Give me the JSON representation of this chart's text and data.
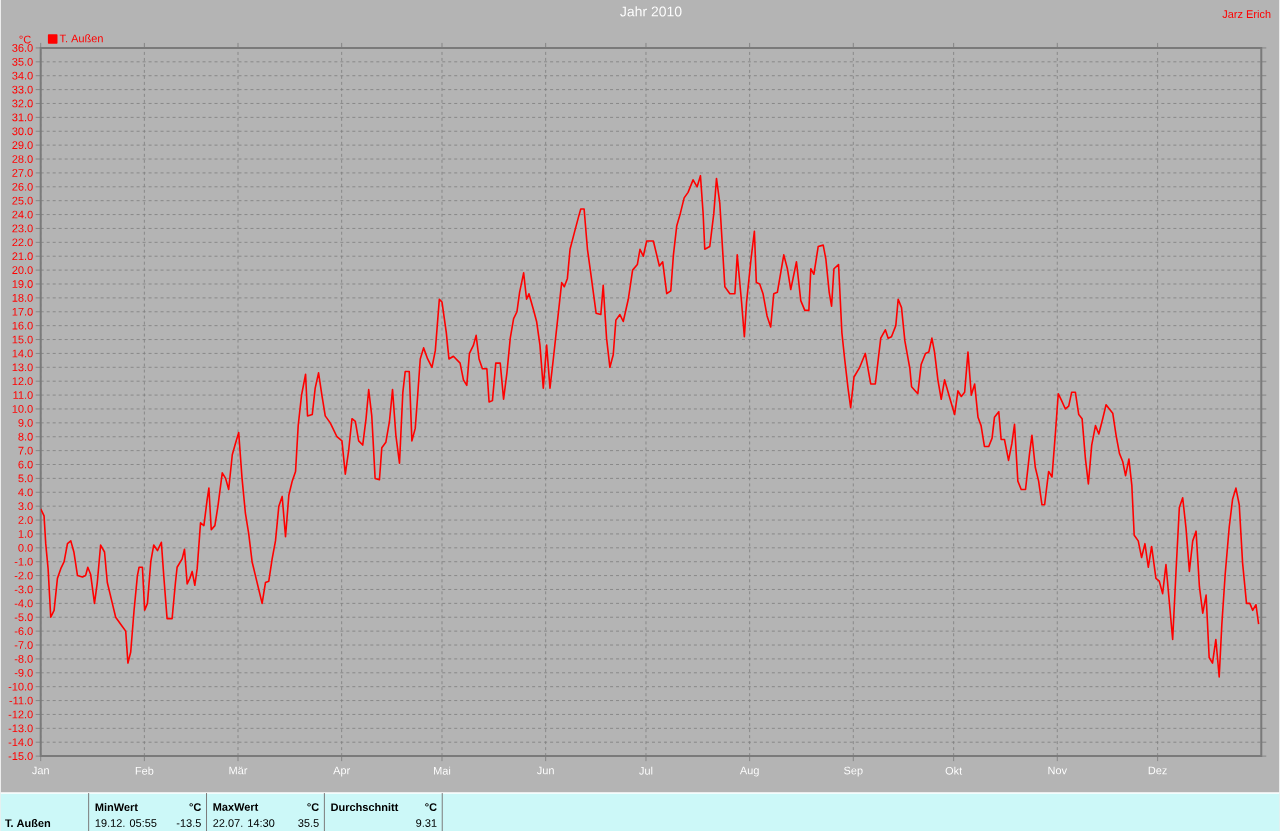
{
  "chart_data": {
    "type": "line",
    "title": "Jahr 2010",
    "ylabel": "°C",
    "legend": "top left",
    "grid": true,
    "marker": "none",
    "line_style": "solid",
    "xlim": [
      "2010-01-01",
      "2011-01-01"
    ],
    "ylim": [
      -15,
      36
    ],
    "xticks": [
      {
        "value": "2010-01-01",
        "label": "Jan"
      },
      {
        "value": "2010-02-01",
        "label": "Feb"
      },
      {
        "value": "2010-03-01",
        "label": "Mär"
      },
      {
        "value": "2010-04-01",
        "label": "Apr"
      },
      {
        "value": "2010-05-01",
        "label": "Mai"
      },
      {
        "value": "2010-06-01",
        "label": "Jun"
      },
      {
        "value": "2010-07-01",
        "label": "Jul"
      },
      {
        "value": "2010-08-01",
        "label": "Aug"
      },
      {
        "value": "2010-09-01",
        "label": "Sep"
      },
      {
        "value": "2010-10-01",
        "label": "Okt"
      },
      {
        "value": "2010-11-01",
        "label": "Nov"
      },
      {
        "value": "2010-12-01",
        "label": "Dez"
      }
    ],
    "yticks": [
      {
        "value": -15,
        "label": "-15.0"
      },
      {
        "value": -14,
        "label": "-14.0"
      },
      {
        "value": -13,
        "label": "-13.0"
      },
      {
        "value": -12,
        "label": "-12.0"
      },
      {
        "value": -11,
        "label": "-11.0"
      },
      {
        "value": -10,
        "label": "-10.0"
      },
      {
        "value": -9,
        "label": "-9.0"
      },
      {
        "value": -8,
        "label": "-8.0"
      },
      {
        "value": -7,
        "label": "-7.0"
      },
      {
        "value": -6,
        "label": "-6.0"
      },
      {
        "value": -5,
        "label": "-5.0"
      },
      {
        "value": -4,
        "label": "-4.0"
      },
      {
        "value": -3,
        "label": "-3.0"
      },
      {
        "value": -2,
        "label": "-2.0"
      },
      {
        "value": -1,
        "label": "-1.0"
      },
      {
        "value": 0,
        "label": "0.0"
      },
      {
        "value": 1,
        "label": "1.0"
      },
      {
        "value": 2,
        "label": "2.0"
      },
      {
        "value": 3,
        "label": "3.0"
      },
      {
        "value": 4,
        "label": "4.0"
      },
      {
        "value": 5,
        "label": "5.0"
      },
      {
        "value": 6,
        "label": "6.0"
      },
      {
        "value": 7,
        "label": "7.0"
      },
      {
        "value": 8,
        "label": "8.0"
      },
      {
        "value": 9,
        "label": "9.0"
      },
      {
        "value": 10,
        "label": "10.0"
      },
      {
        "value": 11,
        "label": "11.0"
      },
      {
        "value": 12,
        "label": "12.0"
      },
      {
        "value": 13,
        "label": "13.0"
      },
      {
        "value": 14,
        "label": "14.0"
      },
      {
        "value": 15,
        "label": "15.0"
      },
      {
        "value": 16,
        "label": "16.0"
      },
      {
        "value": 17,
        "label": "17.0"
      },
      {
        "value": 18,
        "label": "18.0"
      },
      {
        "value": 19,
        "label": "19.0"
      },
      {
        "value": 20,
        "label": "20.0"
      },
      {
        "value": 21,
        "label": "21.0"
      },
      {
        "value": 22,
        "label": "22.0"
      },
      {
        "value": 23,
        "label": "23.0"
      },
      {
        "value": 24,
        "label": "24.0"
      },
      {
        "value": 25,
        "label": "25.0"
      },
      {
        "value": 26,
        "label": "26.0"
      },
      {
        "value": 27,
        "label": "27.0"
      },
      {
        "value": 28,
        "label": "28.0"
      },
      {
        "value": 29,
        "label": "29.0"
      },
      {
        "value": 30,
        "label": "30.0"
      },
      {
        "value": 31,
        "label": "31.0"
      },
      {
        "value": 32,
        "label": "32.0"
      },
      {
        "value": 33,
        "label": "33.0"
      },
      {
        "value": 34,
        "label": "34.0"
      },
      {
        "value": 35,
        "label": "35.0"
      },
      {
        "value": 36,
        "label": "36.0"
      }
    ],
    "series": [
      {
        "name": "T. Außen",
        "color": "#ff0000",
        "x": [
          "2010-01-01T00:00",
          "2010-01-02T00:00",
          "2010-01-02T12:00",
          "2010-01-03T05:00",
          "2010-01-04T00:00",
          "2010-01-05T00:00",
          "2010-01-06T00:00",
          "2010-01-07T00:00",
          "2010-01-08T00:00",
          "2010-01-09T00:00",
          "2010-01-10T00:00",
          "2010-01-10T22:00",
          "2010-01-12T00:00",
          "2010-01-13T12:00",
          "2010-01-14T10:00",
          "2010-01-15T02:00",
          "2010-01-15T22:00",
          "2010-01-17T02:00",
          "2010-01-17T22:00",
          "2010-01-18T22:00",
          "2010-01-20T02:00",
          "2010-01-20T22:00",
          "2010-01-22T10:00",
          "2010-01-23T10:00",
          "2010-01-24T22:00",
          "2010-01-26T10:00",
          "2010-01-27T02:00",
          "2010-01-27T22:00",
          "2010-01-28T22:00",
          "2010-01-29T22:00",
          "2010-01-30T10:00",
          "2010-01-31T10:00",
          "2010-02-01T02:00",
          "2010-02-01T22:00",
          "2010-02-02T22:00",
          "2010-02-03T19:00",
          "2010-02-04T22:00",
          "2010-02-06T02:00",
          "2010-02-06T19:00",
          "2010-02-07T19:00",
          "2010-02-09T07:00",
          "2010-02-10T07:00",
          "2010-02-10T19:00",
          "2010-02-12T07:00",
          "2010-02-13T00:00",
          "2010-02-13T19:00",
          "2010-02-14T14:00",
          "2010-02-15T07:00",
          "2010-02-16T02:00",
          "2010-02-16T19:00",
          "2010-02-17T19:00",
          "2010-02-18T19:00",
          "2010-02-19T19:00",
          "2010-02-20T07:00",
          "2010-02-21T00:00",
          "2010-02-22T02:00",
          "2010-02-23T00:00",
          "2010-02-24T07:00",
          "2010-02-25T07:00",
          "2010-02-26T05:00",
          "2010-02-27T07:00",
          "2010-02-28T05:00",
          "2010-03-01T05:00",
          "2010-03-02T05:00",
          "2010-03-03T05:00",
          "2010-03-04T05:00",
          "2010-03-05T05:00",
          "2010-03-06T05:00",
          "2010-03-07T05:00",
          "2010-03-08T05:00",
          "2010-03-09T05:00",
          "2010-03-10T05:00",
          "2010-03-11T05:00",
          "2010-03-12T05:00",
          "2010-03-13T05:00",
          "2010-03-14T05:00",
          "2010-03-15T05:00",
          "2010-03-16T05:00",
          "2010-03-17T05:00",
          "2010-03-18T05:00",
          "2010-03-19T00:00",
          "2010-03-20T00:00",
          "2010-03-21T05:00",
          "2010-03-21T19:00",
          "2010-03-23T05:00",
          "2010-03-24T02:00",
          "2010-03-25T02:00",
          "2010-03-26T02:00",
          "2010-03-27T02:00",
          "2010-03-28T14:00",
          "2010-03-30T14:00",
          "2010-04-01T02:00",
          "2010-04-02T02:00",
          "2010-04-03T02:00",
          "2010-04-04T02:00",
          "2010-04-05T02:00",
          "2010-04-06T02:00",
          "2010-04-07T07:00",
          "2010-04-08T07:00",
          "2010-04-09T02:00",
          "2010-04-10T00:00",
          "2010-04-11T00:00",
          "2010-04-12T07:00",
          "2010-04-13T00:00",
          "2010-04-14T05:00",
          "2010-04-15T07:00",
          "2010-04-16T05:00",
          "2010-04-17T05:00",
          "2010-04-18T07:00",
          "2010-04-19T07:00",
          "2010-04-20T00:00",
          "2010-04-21T05:00",
          "2010-04-22T00:00",
          "2010-04-23T00:00",
          "2010-04-23T17:00",
          "2010-04-24T12:00",
          "2010-04-25T12:00",
          "2010-04-26T17:00",
          "2010-04-28T00:00",
          "2010-04-29T00:00",
          "2010-04-30T05:00",
          "2010-05-01T00:00",
          "2010-05-02T07:00",
          "2010-05-03T02:00",
          "2010-05-04T10:00",
          "2010-05-06T10:00",
          "2010-05-07T10:00",
          "2010-05-08T10:00",
          "2010-05-09T05:00",
          "2010-05-10T10:00",
          "2010-05-11T05:00",
          "2010-05-12T02:00",
          "2010-05-13T02:00",
          "2010-05-14T10:00",
          "2010-05-15T02:00",
          "2010-05-16T02:00",
          "2010-05-17T02:00",
          "2010-05-18T10:00",
          "2010-05-19T10:00",
          "2010-05-20T10:00",
          "2010-05-21T10:00",
          "2010-05-22T10:00",
          "2010-05-23T10:00",
          "2010-05-24T05:00",
          "2010-05-25T10:00",
          "2010-05-26T07:00",
          "2010-05-27T00:00",
          "2010-05-28T07:00",
          "2010-05-29T07:00",
          "2010-05-30T07:00",
          "2010-05-31T07:00",
          "2010-06-01T07:00",
          "2010-06-02T07:00",
          "2010-06-03T07:00",
          "2010-06-04T07:00",
          "2010-06-05T19:00",
          "2010-06-06T14:00",
          "2010-06-07T12:00",
          "2010-06-08T07:00",
          "2010-06-09T14:00",
          "2010-06-10T19:00",
          "2010-06-11T12:00",
          "2010-06-12T12:00",
          "2010-06-13T12:00",
          "2010-06-14T14:00",
          "2010-06-16T02:00",
          "2010-06-17T12:00",
          "2010-06-18T05:00",
          "2010-06-19T05:00",
          "2010-06-20T05:00",
          "2010-06-21T05:00",
          "2010-06-22T00:00",
          "2010-06-23T05:00",
          "2010-06-24T05:00",
          "2010-06-25T17:00",
          "2010-06-27T00:00",
          "2010-06-28T10:00",
          "2010-06-29T05:00",
          "2010-06-30T05:00",
          "2010-07-01T05:00",
          "2010-07-03T05:00",
          "2010-07-05T00:00",
          "2010-07-06T00:00",
          "2010-07-07T05:00",
          "2010-07-08T10:00",
          "2010-07-09T05:00",
          "2010-07-10T05:00",
          "2010-07-11T07:00",
          "2010-07-12T10:00",
          "2010-07-13T14:00",
          "2010-07-15T02:00",
          "2010-07-16T07:00",
          "2010-07-17T07:00",
          "2010-07-18T02:00",
          "2010-07-18T14:00",
          "2010-07-20T02:00",
          "2010-07-21T07:00",
          "2010-07-22T02:00",
          "2010-07-23T02:00",
          "2010-07-24T02:00",
          "2010-07-24T14:00",
          "2010-07-26T02:00",
          "2010-07-27T14:00",
          "2010-07-28T07:00",
          "2010-07-29T14:00",
          "2010-07-30T10:00",
          "2010-07-31T02:00",
          "2010-08-01T10:00",
          "2010-08-02T10:00",
          "2010-08-03T00:00",
          "2010-08-04T00:00",
          "2010-08-05T00:00",
          "2010-08-06T05:00",
          "2010-08-07T07:00",
          "2010-08-08T05:00",
          "2010-08-09T07:00",
          "2010-08-11T05:00",
          "2010-08-12T07:00",
          "2010-08-13T07:00",
          "2010-08-15T00:00",
          "2010-08-16T07:00",
          "2010-08-17T12:00",
          "2010-08-18T17:00",
          "2010-08-19T07:00",
          "2010-08-20T05:00",
          "2010-08-21T12:00",
          "2010-08-23T00:00",
          "2010-08-23T19:00",
          "2010-08-24T19:00",
          "2010-08-25T12:00",
          "2010-08-26T05:00",
          "2010-08-27T14:00",
          "2010-08-28T14:00",
          "2010-08-29T10:00",
          "2010-08-30T10:00",
          "2010-08-31T05:00",
          "2010-09-01T05:00",
          "2010-09-02T22:00",
          "2010-09-04T14:00",
          "2010-09-06T05:00",
          "2010-09-07T14:00",
          "2010-09-09T05:00",
          "2010-09-10T14:00",
          "2010-09-11T10:00",
          "2010-09-12T10:00",
          "2010-09-13T17:00",
          "2010-09-14T10:00",
          "2010-09-15T10:00",
          "2010-09-16T10:00",
          "2010-09-17T22:00",
          "2010-09-18T10:00",
          "2010-09-20T07:00",
          "2010-09-21T07:00",
          "2010-09-22T14:00",
          "2010-09-23T14:00",
          "2010-09-24T12:00",
          "2010-09-25T07:00",
          "2010-09-26T07:00",
          "2010-09-27T07:00",
          "2010-09-28T07:00",
          "2010-09-29T14:00",
          "2010-10-01T07:00",
          "2010-10-02T07:00",
          "2010-10-03T07:00",
          "2010-10-04T07:00",
          "2010-10-05T07:00",
          "2010-10-06T07:00",
          "2010-10-07T07:00",
          "2010-10-08T07:00",
          "2010-10-09T05:00",
          "2010-10-10T05:00",
          "2010-10-11T12:00",
          "2010-10-12T12:00",
          "2010-10-13T05:00",
          "2010-10-14T12:00",
          "2010-10-15T05:00",
          "2010-10-16T05:00",
          "2010-10-17T10:00",
          "2010-10-18T10:00",
          "2010-10-19T05:00",
          "2010-10-20T05:00",
          "2010-10-21T05:00",
          "2010-10-22T12:00",
          "2010-10-23T17:00",
          "2010-10-24T10:00",
          "2010-10-25T10:00",
          "2010-10-26T10:00",
          "2010-10-27T10:00",
          "2010-10-28T05:00",
          "2010-10-29T10:00",
          "2010-10-30T10:00",
          "2010-10-31T10:00",
          "2010-11-01T07:00",
          "2010-11-02T07:00",
          "2010-11-03T10:00",
          "2010-11-04T10:00",
          "2010-11-05T07:00",
          "2010-11-06T10:00",
          "2010-11-07T10:00",
          "2010-11-08T10:00",
          "2010-11-09T10:00",
          "2010-11-10T07:00",
          "2010-11-11T07:00",
          "2010-11-12T10:00",
          "2010-11-13T10:00",
          "2010-11-14T14:00",
          "2010-11-15T14:00",
          "2010-11-16T14:00",
          "2010-11-17T14:00",
          "2010-11-18T14:00",
          "2010-11-19T14:00",
          "2010-11-20T14:00",
          "2010-11-21T10:00",
          "2010-11-22T10:00",
          "2010-11-23T07:00",
          "2010-11-24T00:00",
          "2010-11-25T05:00",
          "2010-11-26T05:00",
          "2010-11-27T05:00",
          "2010-11-28T05:00",
          "2010-11-29T05:00",
          "2010-11-30T12:00",
          "2010-12-01T12:00",
          "2010-12-02T12:00",
          "2010-12-03T12:00",
          "2010-12-04T12:00",
          "2010-12-05T12:00",
          "2010-12-06T12:00",
          "2010-12-07T12:00",
          "2010-12-08T12:00",
          "2010-12-09T12:00",
          "2010-12-10T12:00",
          "2010-12-11T12:00",
          "2010-12-12T12:00",
          "2010-12-13T12:00",
          "2010-12-14T12:00",
          "2010-12-15T12:00",
          "2010-12-16T10:00",
          "2010-12-17T10:00",
          "2010-12-18T10:00",
          "2010-12-19T10:00",
          "2010-12-20T05:00",
          "2010-12-21T05:00",
          "2010-12-22T10:00",
          "2010-12-23T10:00",
          "2010-12-24T10:00",
          "2010-12-25T10:00",
          "2010-12-26T10:00",
          "2010-12-27T14:00",
          "2010-12-28T14:00",
          "2010-12-29T10:00",
          "2010-12-30T10:00",
          "2010-12-31T05:00"
        ],
        "values": [
          2.8,
          2.3,
          0.3,
          -1.5,
          -5.0,
          -4.5,
          -2.2,
          -1.5,
          -1.0,
          0.3,
          0.5,
          -0.3,
          -2.0,
          -2.1,
          -2.0,
          -1.4,
          -1.9,
          -4.0,
          -2.5,
          0.2,
          -0.3,
          -2.5,
          -4.0,
          -5.0,
          -5.5,
          -6.0,
          -8.3,
          -7.5,
          -4.5,
          -2.0,
          -1.4,
          -1.4,
          -4.5,
          -4.0,
          -1.0,
          0.2,
          -0.2,
          0.4,
          -2.0,
          -5.1,
          -5.1,
          -2.5,
          -1.4,
          -0.8,
          -0.1,
          -2.6,
          -2.2,
          -1.7,
          -2.7,
          -1.5,
          1.8,
          1.6,
          3.5,
          4.3,
          1.3,
          1.6,
          3.0,
          5.4,
          5.0,
          4.2,
          6.7,
          7.5,
          8.3,
          5.0,
          2.5,
          1.0,
          -1.0,
          -2.0,
          -3.0,
          -4.0,
          -2.5,
          -2.4,
          -0.8,
          0.5,
          3.0,
          3.7,
          0.8,
          3.8,
          4.8,
          5.5,
          8.8,
          11.0,
          12.5,
          9.5,
          9.6,
          11.5,
          12.6,
          11.0,
          9.5,
          9.0,
          8.0,
          7.7,
          5.3,
          7.0,
          9.3,
          9.1,
          7.7,
          7.4,
          9.3,
          11.4,
          9.5,
          5.0,
          4.9,
          7.2,
          7.6,
          9.1,
          11.4,
          8.1,
          6.1,
          11.2,
          12.7,
          12.7,
          7.7,
          8.6,
          10.9,
          13.6,
          14.4,
          13.6,
          13.0,
          14.2,
          17.9,
          17.7,
          15.5,
          13.6,
          13.8,
          13.3,
          12.1,
          11.7,
          14.0,
          14.6,
          15.3,
          13.6,
          12.9,
          12.9,
          10.5,
          10.6,
          13.3,
          13.3,
          10.7,
          12.6,
          15.1,
          16.5,
          17.0,
          18.4,
          19.8,
          17.9,
          18.3,
          17.2,
          16.3,
          14.6,
          11.5,
          14.6,
          11.5,
          13.6,
          15.8,
          19.1,
          18.8,
          19.4,
          21.5,
          22.7,
          23.8,
          24.4,
          24.4,
          21.5,
          19.6,
          16.9,
          16.8,
          18.9,
          15.1,
          13.0,
          13.9,
          16.4,
          16.8,
          16.3,
          17.9,
          20.0,
          20.4,
          21.5,
          21.0,
          22.1,
          22.1,
          20.3,
          20.6,
          18.3,
          18.5,
          21.1,
          23.2,
          24.1,
          25.2,
          25.6,
          26.5,
          26.0,
          26.8,
          24.1,
          21.5,
          21.7,
          24.1,
          26.6,
          24.8,
          20.8,
          18.8,
          18.3,
          18.3,
          21.1,
          17.7,
          15.2,
          17.7,
          20.8,
          22.8,
          19.1,
          19.0,
          18.3,
          16.7,
          15.9,
          18.3,
          18.4,
          21.1,
          20.1,
          18.6,
          20.6,
          17.8,
          17.1,
          17.1,
          20.1,
          19.7,
          21.7,
          21.8,
          20.8,
          18.4,
          17.4,
          20.1,
          20.4,
          15.5,
          13.6,
          11.5,
          10.1,
          12.3,
          13.0,
          14.0,
          11.8,
          11.8,
          15.1,
          15.7,
          15.1,
          15.2,
          16.0,
          17.9,
          17.3,
          14.9,
          12.9,
          11.6,
          11.1,
          13.2,
          14.0,
          14.1,
          15.1,
          14.1,
          12.1,
          10.7,
          12.1,
          11.0,
          9.6,
          11.3,
          10.9,
          11.2,
          14.1,
          11.0,
          11.8,
          9.4,
          8.8,
          7.3,
          7.3,
          7.9,
          9.4,
          9.8,
          7.8,
          7.8,
          6.3,
          7.5,
          8.9,
          4.8,
          4.2,
          4.2,
          6.8,
          8.1,
          5.8,
          4.8,
          3.1,
          3.1,
          5.5,
          5.1,
          8.2,
          11.1,
          10.6,
          10.0,
          10.2,
          11.2,
          11.2,
          9.6,
          9.3,
          6.4,
          4.6,
          7.4,
          8.8,
          8.2,
          9.3,
          10.3,
          10.0,
          9.7,
          8.1,
          6.8,
          6.2,
          5.2,
          6.4,
          4.5,
          0.9,
          0.5,
          -0.7,
          0.3,
          -1.4,
          0.1,
          -2.2,
          -2.4,
          -3.3,
          -1.2,
          -3.9,
          -6.6,
          -1.7,
          2.9,
          3.6,
          1.4,
          -1.7,
          0.5,
          1.2,
          -2.8,
          -4.7,
          -3.4,
          -7.9,
          -8.3,
          -6.6,
          -9.3,
          -5.5,
          -1.9,
          1.5,
          3.5,
          4.3,
          3.1,
          -1.1,
          -4.0,
          -4.0,
          -4.5,
          -4.1,
          -5.5
        ]
      }
    ],
    "annotations": [
      "Jarz Erich",
      "T. Außen",
      "MinWert",
      "°C",
      "19.12. 05:55",
      "-13.5",
      "MaxWert",
      "°C",
      "22.07. 14:30",
      "35.5",
      "Durchschnitt",
      "°C",
      "9.31"
    ]
  }
}
